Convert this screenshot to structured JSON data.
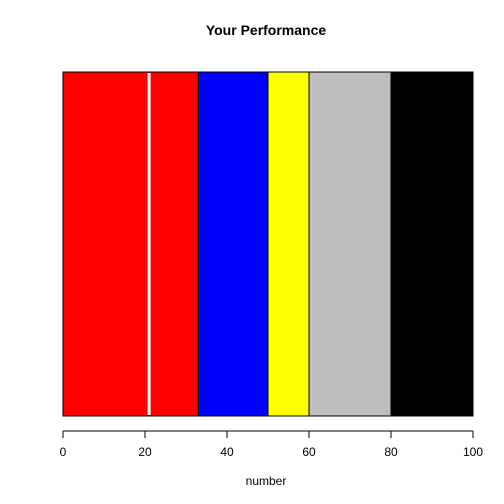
{
  "chart_data": {
    "type": "bar",
    "orientation": "horizontal",
    "stacked": true,
    "title": "Your Performance",
    "xlabel": "number",
    "ylabel": "",
    "xlim": [
      0,
      100
    ],
    "x_ticks": [
      0,
      20,
      40,
      60,
      80,
      100
    ],
    "segments": [
      {
        "name": "band-1",
        "start": 0,
        "end": 33,
        "color": "#ff0000"
      },
      {
        "name": "band-2",
        "start": 33,
        "end": 50,
        "color": "#0000ff"
      },
      {
        "name": "band-3",
        "start": 50,
        "end": 60,
        "color": "#ffff00"
      },
      {
        "name": "band-4",
        "start": 60,
        "end": 80,
        "color": "#bebebe"
      },
      {
        "name": "band-5",
        "start": 80,
        "end": 100,
        "color": "#000000"
      }
    ],
    "marker": {
      "value": 21,
      "color": "#ffffff"
    }
  }
}
